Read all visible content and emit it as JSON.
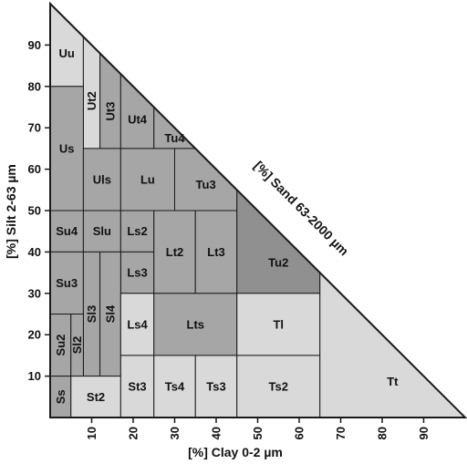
{
  "palette": {
    "light": "#d9d9d9",
    "medium": "#a6a6a6",
    "dark": "#909090",
    "stroke": "#1a1a1a"
  },
  "axes": {
    "x_title": "[%] Clay 0-2 µm",
    "y_title": "[%] Silt 2-63 µm",
    "hyp_title": "[%] Sand 63-2000 µm",
    "x_ticks": [
      "10",
      "20",
      "30",
      "40",
      "50",
      "60",
      "70",
      "80",
      "90"
    ],
    "y_ticks": [
      "10",
      "20",
      "30",
      "40",
      "50",
      "60",
      "70",
      "80",
      "90"
    ]
  },
  "classes": [
    {
      "label": "Uu",
      "shade": "light",
      "clay": [
        0,
        8
      ],
      "silt": [
        80,
        100
      ]
    },
    {
      "label": "Ut2",
      "shade": "light",
      "clay": [
        8,
        12
      ],
      "silt": [
        65,
        92
      ]
    },
    {
      "label": "Ut3",
      "shade": "medium",
      "clay": [
        12,
        17
      ],
      "silt": [
        65,
        88
      ]
    },
    {
      "label": "Ut4",
      "shade": "medium",
      "clay": [
        17,
        25
      ],
      "silt": [
        65,
        83
      ]
    },
    {
      "label": "Tu4",
      "shade": "medium",
      "clay": [
        25,
        35
      ],
      "silt": [
        65,
        75
      ]
    },
    {
      "label": "Us",
      "shade": "medium",
      "clay": [
        0,
        8
      ],
      "silt": [
        50,
        80
      ]
    },
    {
      "label": "Uls",
      "shade": "medium",
      "clay": [
        8,
        17
      ],
      "silt": [
        50,
        65
      ]
    },
    {
      "label": "Lu",
      "shade": "medium",
      "clay": [
        17,
        30
      ],
      "silt": [
        50,
        65
      ]
    },
    {
      "label": "Tu3",
      "shade": "medium",
      "clay": [
        30,
        45
      ],
      "silt": [
        50,
        65
      ]
    },
    {
      "label": "Su4",
      "shade": "medium",
      "clay": [
        0,
        8
      ],
      "silt": [
        40,
        50
      ]
    },
    {
      "label": "Slu",
      "shade": "medium",
      "clay": [
        8,
        17
      ],
      "silt": [
        40,
        50
      ]
    },
    {
      "label": "Ls2",
      "shade": "medium",
      "clay": [
        17,
        25
      ],
      "silt": [
        40,
        50
      ]
    },
    {
      "label": "Ls3",
      "shade": "medium",
      "clay": [
        17,
        25
      ],
      "silt": [
        30,
        40
      ]
    },
    {
      "label": "Lt2",
      "shade": "medium",
      "clay": [
        25,
        35
      ],
      "silt": [
        30,
        50
      ]
    },
    {
      "label": "Lt3",
      "shade": "medium",
      "clay": [
        35,
        45
      ],
      "silt": [
        30,
        50
      ]
    },
    {
      "label": "Tu2",
      "shade": "dark",
      "clay": [
        45,
        65
      ],
      "silt": [
        30,
        55
      ]
    },
    {
      "label": "Su3",
      "shade": "medium",
      "clay": [
        0,
        8
      ],
      "silt": [
        25,
        40
      ]
    },
    {
      "label": "Sl3",
      "shade": "medium",
      "clay": [
        8,
        12
      ],
      "silt": [
        10,
        40
      ]
    },
    {
      "label": "Sl4",
      "shade": "medium",
      "clay": [
        12,
        17
      ],
      "silt": [
        10,
        40
      ]
    },
    {
      "label": "Su2",
      "shade": "medium",
      "clay": [
        0,
        5
      ],
      "silt": [
        10,
        25
      ]
    },
    {
      "label": "Sl2",
      "shade": "medium",
      "clay": [
        5,
        8
      ],
      "silt": [
        10,
        25
      ]
    },
    {
      "label": "Ls4",
      "shade": "light",
      "clay": [
        17,
        25
      ],
      "silt": [
        15,
        30
      ]
    },
    {
      "label": "Lts",
      "shade": "medium",
      "clay": [
        25,
        45
      ],
      "silt": [
        15,
        30
      ]
    },
    {
      "label": "Tl",
      "shade": "light",
      "clay": [
        45,
        65
      ],
      "silt": [
        15,
        30
      ]
    },
    {
      "label": "Ss",
      "shade": "medium",
      "clay": [
        0,
        5
      ],
      "silt": [
        0,
        10
      ]
    },
    {
      "label": "St2",
      "shade": "light",
      "clay": [
        5,
        17
      ],
      "silt": [
        0,
        10
      ]
    },
    {
      "label": "St3",
      "shade": "light",
      "clay": [
        17,
        25
      ],
      "silt": [
        0,
        15
      ]
    },
    {
      "label": "Ts4",
      "shade": "light",
      "clay": [
        25,
        35
      ],
      "silt": [
        0,
        15
      ]
    },
    {
      "label": "Ts3",
      "shade": "light",
      "clay": [
        35,
        45
      ],
      "silt": [
        0,
        15
      ]
    },
    {
      "label": "Ts2",
      "shade": "light",
      "clay": [
        45,
        65
      ],
      "silt": [
        0,
        15
      ]
    },
    {
      "label": "Tt",
      "shade": "light",
      "clay": [
        65,
        100
      ],
      "silt": [
        0,
        35
      ]
    }
  ]
}
